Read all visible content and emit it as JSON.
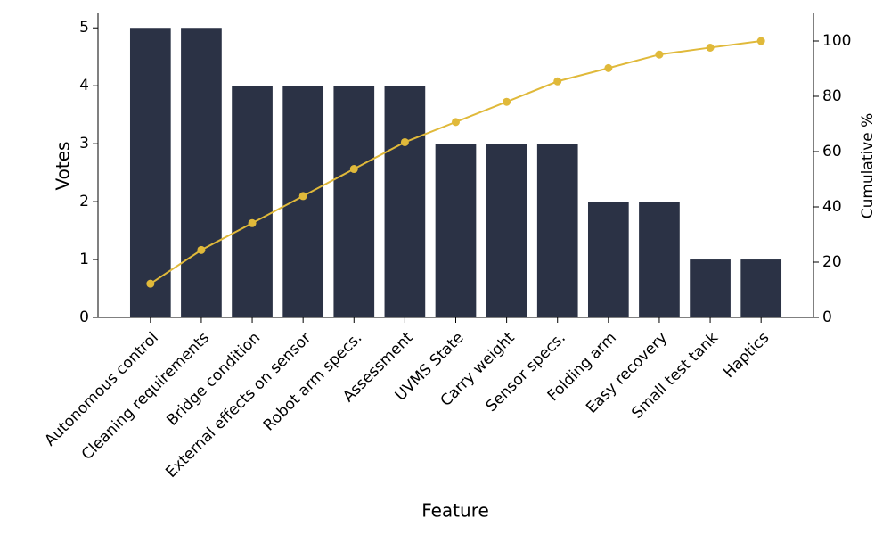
{
  "chart_data": {
    "type": "pareto",
    "x_label": "Feature",
    "y_label": "Votes",
    "y2_label": "Cumulative %",
    "categories": [
      "Autonomous control",
      "Cleaning requirements",
      "Bridge condition",
      "External effects on sensor",
      "Robot arm specs.",
      "Assessment",
      "UVMS State",
      "Carry weight",
      "Sensor specs.",
      "Folding arm",
      "Easy recovery",
      "Small test tank",
      "Haptics"
    ],
    "series": [
      {
        "name": "Votes",
        "type": "bar",
        "color": "#2b3245",
        "values": [
          5,
          5,
          4,
          4,
          4,
          4,
          3,
          3,
          3,
          2,
          2,
          1,
          1
        ]
      },
      {
        "name": "Cumulative %",
        "type": "line",
        "axis": "y2",
        "color": "#e0b93a",
        "values": [
          12.2,
          24.4,
          34.1,
          43.9,
          53.7,
          63.4,
          70.7,
          78.0,
          85.4,
          90.2,
          95.1,
          97.6,
          100
        ]
      }
    ],
    "ylim": [
      0,
      5.25
    ],
    "yticks": [
      0,
      1,
      2,
      3,
      4,
      5
    ],
    "y2lim": [
      0,
      110
    ],
    "y2ticks": [
      0,
      20,
      40,
      60,
      80,
      100
    ]
  }
}
